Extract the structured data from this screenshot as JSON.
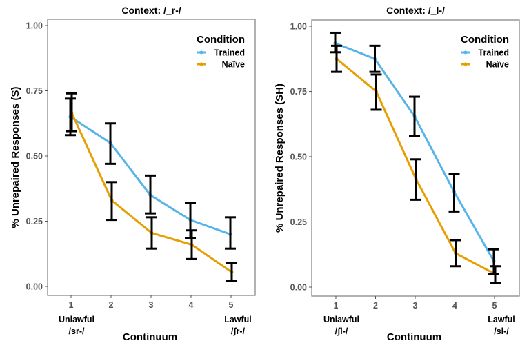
{
  "colors": {
    "trained": "#56B4E9",
    "naive": "#E69F00",
    "errorbar": "#000000"
  },
  "chart_data": [
    {
      "type": "line",
      "title": "Context: /_r-/",
      "xlabel": "Continuum",
      "ylabel": "% Unrepaired Responses (S)",
      "x": [
        1,
        2,
        3,
        4,
        5
      ],
      "xticks": [
        "1",
        "2",
        "3",
        "4",
        "5"
      ],
      "yticks": [
        "0.00",
        "0.25",
        "0.50",
        "0.75",
        "1.00"
      ],
      "ylim": [
        0,
        1
      ],
      "x_end_labels": {
        "left": [
          "Unlawful",
          "/sr-/"
        ],
        "right": [
          "Lawful",
          "/ʃr-/"
        ]
      },
      "legend": {
        "title": "Condition",
        "position": "top-right",
        "entries": [
          "Trained",
          "Naïve"
        ]
      },
      "series": [
        {
          "name": "Trained",
          "values": [
            0.65,
            0.55,
            0.35,
            0.255,
            0.2
          ],
          "lower": [
            0.58,
            0.47,
            0.28,
            0.185,
            0.145
          ],
          "upper": [
            0.72,
            0.625,
            0.425,
            0.32,
            0.265
          ]
        },
        {
          "name": "Naïve",
          "values": [
            0.665,
            0.33,
            0.205,
            0.16,
            0.055
          ],
          "lower": [
            0.595,
            0.255,
            0.145,
            0.105,
            0.02
          ],
          "upper": [
            0.74,
            0.4,
            0.265,
            0.215,
            0.09
          ]
        }
      ]
    },
    {
      "type": "line",
      "title": "Context: /_l-/",
      "xlabel": "Continuum",
      "ylabel": "% Unrepaired Responses (SH)",
      "x": [
        1,
        2,
        3,
        4,
        5
      ],
      "xticks": [
        "1",
        "2",
        "3",
        "4",
        "5"
      ],
      "yticks": [
        "0.00",
        "0.25",
        "0.50",
        "0.75",
        "1.00"
      ],
      "ylim": [
        0,
        1
      ],
      "x_end_labels": {
        "left": [
          "Unlawful",
          "/ʃl-/"
        ],
        "right": [
          "Lawful",
          "/sl-/"
        ]
      },
      "legend": {
        "title": "Condition",
        "position": "top-right",
        "entries": [
          "Trained",
          "Naïve"
        ]
      },
      "series": [
        {
          "name": "Trained",
          "values": [
            0.935,
            0.875,
            0.655,
            0.365,
            0.1
          ],
          "lower": [
            0.9,
            0.825,
            0.58,
            0.29,
            0.05
          ],
          "upper": [
            0.975,
            0.925,
            0.73,
            0.435,
            0.145
          ]
        },
        {
          "name": "Naïve",
          "values": [
            0.875,
            0.75,
            0.415,
            0.13,
            0.05
          ],
          "lower": [
            0.825,
            0.68,
            0.335,
            0.08,
            0.015
          ],
          "upper": [
            0.925,
            0.815,
            0.49,
            0.18,
            0.08
          ]
        }
      ]
    }
  ]
}
